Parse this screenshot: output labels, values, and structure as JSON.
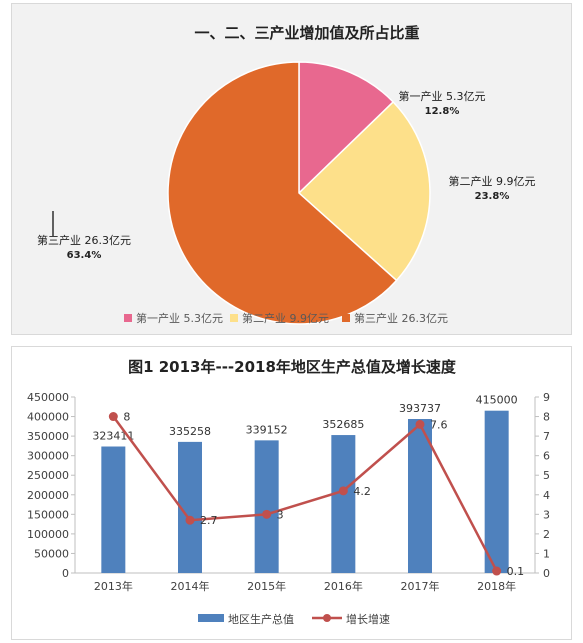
{
  "chart_data": [
    {
      "type": "pie",
      "title": "一、二、三产业增加值及所占比重",
      "slices": [
        {
          "name": "第一产业",
          "label": "第一产业 5.3亿元",
          "legend": "第一产业 5.3亿元",
          "value": 5.3,
          "percent": "12.8%",
          "color": "#e8688f"
        },
        {
          "name": "第二产业",
          "label": "第二产业 9.9亿元",
          "legend": "第二产业 9.9亿元",
          "value": 9.9,
          "percent": "23.8%",
          "color": "#fde08a"
        },
        {
          "name": "第三产业",
          "label": "第三产业 26.3亿元",
          "legend": "第三产业 26.3亿元",
          "value": 26.3,
          "percent": "63.4%",
          "color": "#e0692a"
        }
      ],
      "legend_position": "bottom"
    },
    {
      "type": "bar+line",
      "title": "图1  2013年---2018年地区生产总值及增长速度",
      "categories": [
        "2013年",
        "2014年",
        "2015年",
        "2016年",
        "2017年",
        "2018年"
      ],
      "series": [
        {
          "name": "地区生产总值",
          "type": "bar",
          "axis": "left",
          "values": [
            323411,
            335258,
            339152,
            352685,
            393737,
            415000
          ],
          "color": "#4f81bd"
        },
        {
          "name": "增长增速",
          "type": "line",
          "axis": "right",
          "values": [
            8,
            2.7,
            3,
            4.2,
            7.6,
            0.1
          ],
          "color": "#c0504d"
        }
      ],
      "y_left": {
        "min": 0,
        "max": 450000,
        "ticks": [
          "0",
          "50000",
          "100000",
          "150000",
          "200000",
          "250000",
          "300000",
          "350000",
          "400000",
          "450000"
        ]
      },
      "y_right": {
        "min": 0,
        "max": 9,
        "ticks": [
          "0",
          "1",
          "2",
          "3",
          "4",
          "5",
          "6",
          "7",
          "8",
          "9"
        ]
      },
      "grid": false,
      "legend_position": "bottom"
    }
  ]
}
